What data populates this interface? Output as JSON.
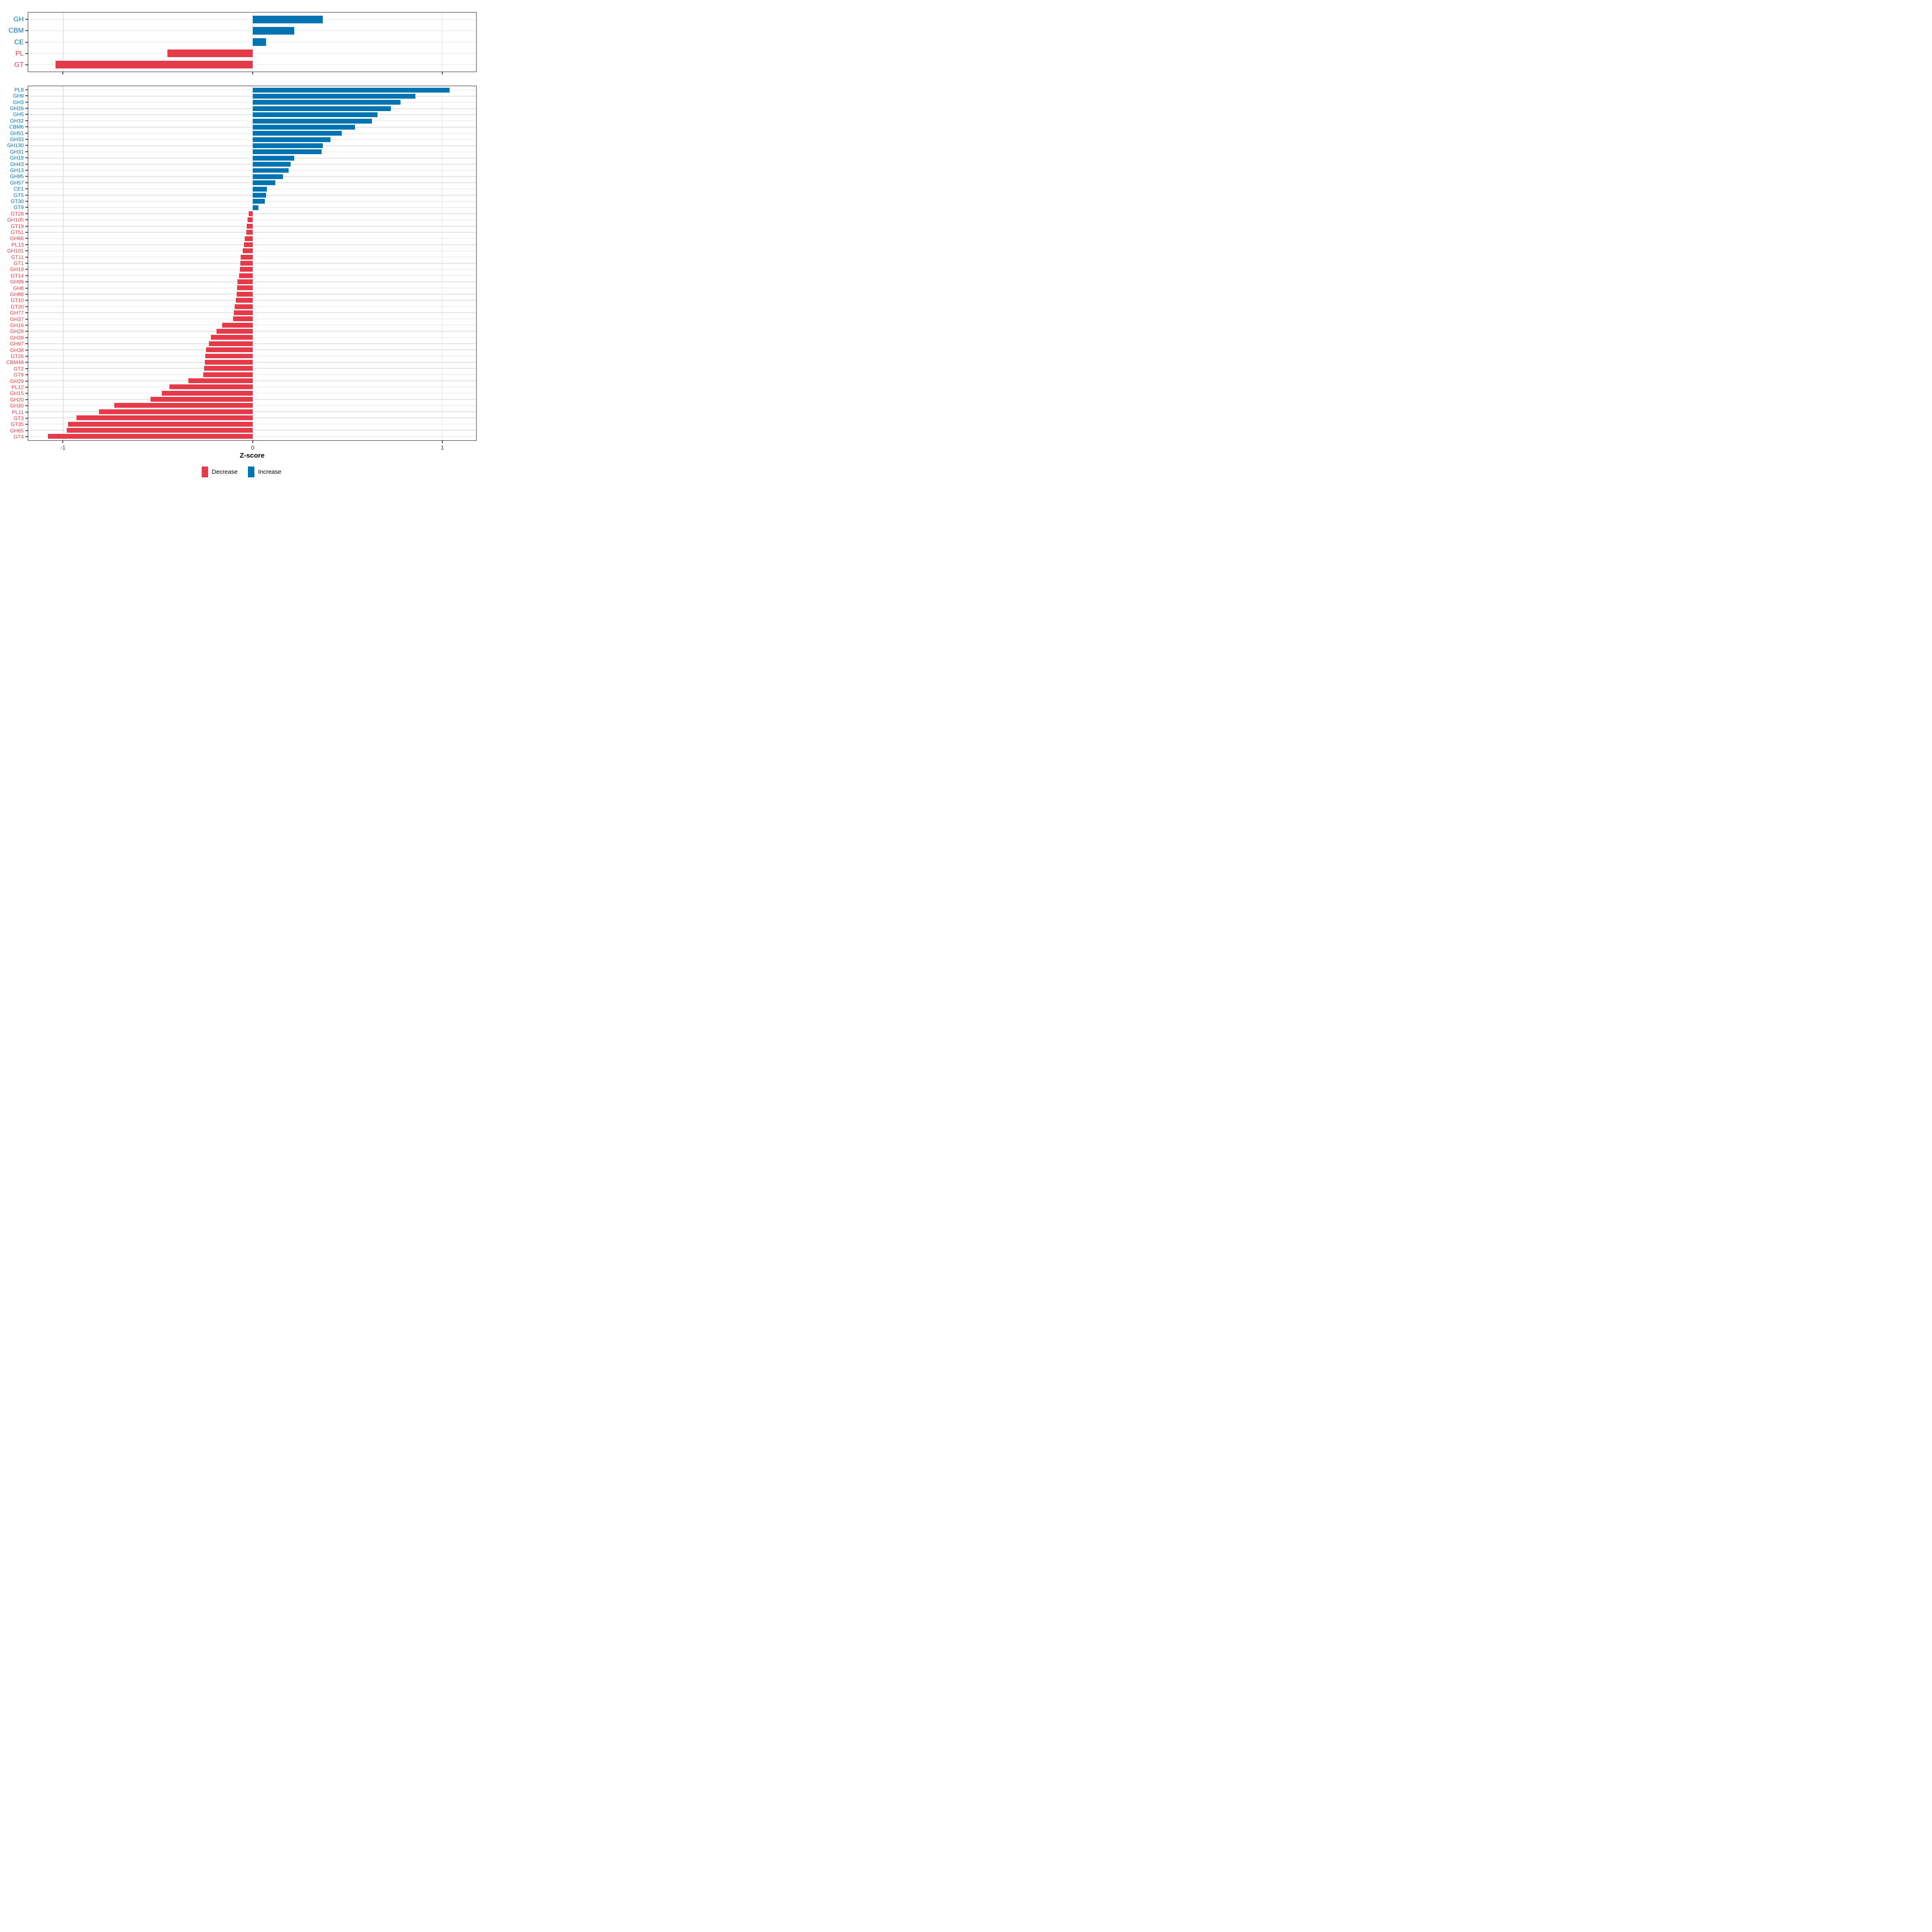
{
  "colors": {
    "increase": "#0074B3",
    "decrease": "#E53A4A",
    "grid": "#E0E0E0",
    "panel_border": "#1A1A1A",
    "tick_mark": "#333333",
    "axis_text": "#404040",
    "xlabel_text": "#000000"
  },
  "axis": {
    "xlabel": "Z-score",
    "xmin": -1.185,
    "xmax": 1.18,
    "ticks": [
      {
        "value": -1,
        "label": "-1"
      },
      {
        "value": 0,
        "label": "0"
      },
      {
        "value": 1,
        "label": "1"
      }
    ]
  },
  "legend": {
    "position": "bottom",
    "items": [
      {
        "label": "Decrease",
        "direction": "decrease"
      },
      {
        "label": "Increase",
        "direction": "increase"
      }
    ]
  },
  "chart_data": [
    {
      "type": "bar",
      "orientation": "horizontal",
      "panel": "cazyme-classes",
      "title": "",
      "xlabel": "Z-score",
      "xlim": [
        -1.185,
        1.18
      ],
      "grid": "major-x",
      "legend_position": "bottom",
      "categories": [
        "GH",
        "CBM",
        "CE",
        "PL",
        "GT"
      ],
      "values": [
        0.37,
        0.22,
        0.07,
        -0.45,
        -1.04
      ]
    },
    {
      "type": "bar",
      "orientation": "horizontal",
      "panel": "cazyme-families",
      "title": "",
      "xlabel": "Z-score",
      "xlim": [
        -1.185,
        1.18
      ],
      "grid": "major-x",
      "legend_position": "bottom",
      "categories": [
        "PL8",
        "GH9",
        "GH3",
        "GH26",
        "GH5",
        "GH32",
        "CBM6",
        "GH51",
        "GH33",
        "GH130",
        "GH31",
        "GH18",
        "GH43",
        "GH13",
        "GH95",
        "GH57",
        "CE1",
        "GT5",
        "GT30",
        "GT9",
        "GT28",
        "GH105",
        "GT19",
        "GT51",
        "GH66",
        "PL13",
        "GH101",
        "GT11",
        "GT1",
        "GH19",
        "GT14",
        "GH99",
        "GH8",
        "GH88",
        "GT10",
        "GT20",
        "GH77",
        "GH37",
        "GH16",
        "GH28",
        "GH39",
        "GH97",
        "GH38",
        "GT26",
        "CBM48",
        "GT2",
        "GT8",
        "GH29",
        "PL12",
        "GH15",
        "GH20",
        "GH30",
        "PL11",
        "GT3",
        "GT35",
        "GH65",
        "GT4"
      ],
      "values": [
        1.04,
        0.86,
        0.78,
        0.73,
        0.66,
        0.63,
        0.54,
        0.47,
        0.41,
        0.37,
        0.365,
        0.22,
        0.2,
        0.19,
        0.16,
        0.12,
        0.075,
        0.07,
        0.065,
        0.03,
        -0.02,
        -0.028,
        -0.031,
        -0.034,
        -0.042,
        -0.045,
        -0.053,
        -0.063,
        -0.066,
        -0.068,
        -0.071,
        -0.08,
        -0.083,
        -0.085,
        -0.088,
        -0.095,
        -0.099,
        -0.103,
        -0.16,
        -0.19,
        -0.22,
        -0.23,
        -0.245,
        -0.25,
        -0.253,
        -0.256,
        -0.26,
        -0.34,
        -0.44,
        -0.48,
        -0.54,
        -0.73,
        -0.81,
        -0.93,
        -0.975,
        -0.98,
        -1.08
      ]
    }
  ]
}
